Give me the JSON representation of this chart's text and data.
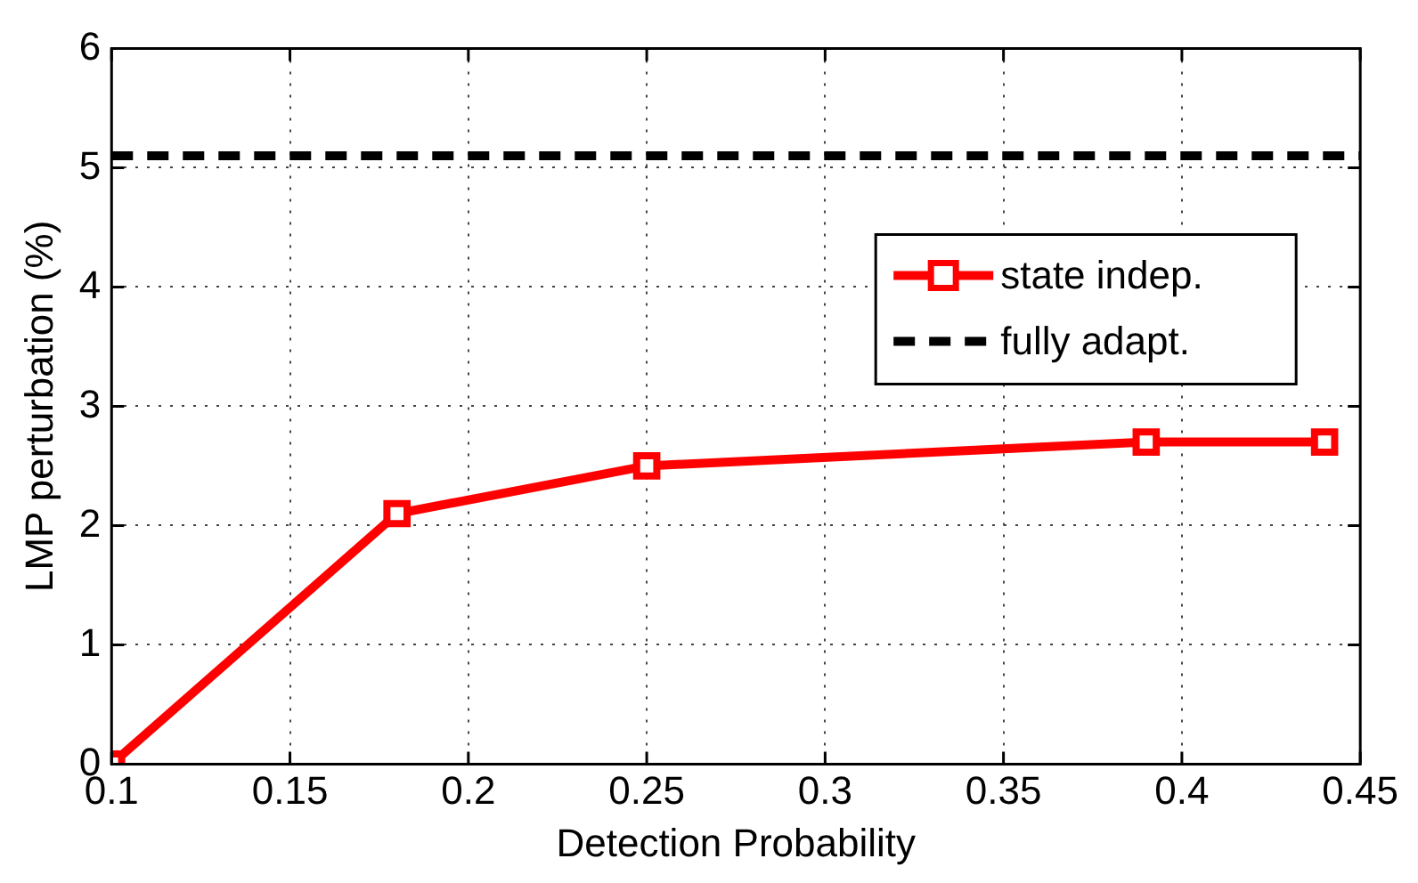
{
  "chart_data": {
    "type": "line",
    "xlabel": "Detection Probability",
    "ylabel": "LMP perturbation (%)",
    "xlim": [
      0.1,
      0.45
    ],
    "xticks": [
      0.1,
      0.15,
      0.2,
      0.25,
      0.3,
      0.35,
      0.4,
      0.45
    ],
    "ylim": [
      0,
      6
    ],
    "yticks": [
      0,
      1,
      2,
      3,
      4,
      5,
      6
    ],
    "grid": true,
    "legend": "right",
    "series": [
      {
        "name": "state indep.",
        "color": "#ff0000",
        "x": [
          0.1,
          0.18,
          0.25,
          0.39,
          0.44
        ],
        "values": [
          0,
          2.1,
          2.5,
          2.7,
          2.7
        ],
        "marker": "square",
        "line_style": "solid"
      },
      {
        "name": "fully adapt.",
        "color": "#000000",
        "x": [
          0.1,
          0.45
        ],
        "values": [
          5.1,
          5.1
        ],
        "marker": "none",
        "line_style": "dashed"
      }
    ]
  }
}
